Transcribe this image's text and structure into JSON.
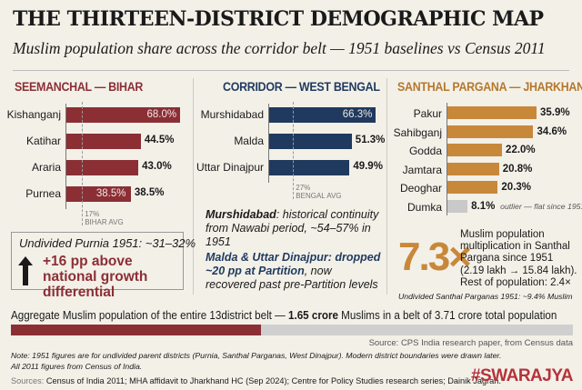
{
  "header": {
    "title": "THE THIRTEEN-DISTRICT DEMOGRAPHIC MAP",
    "subtitle": "Muslim population share across the corridor belt — 1951 baselines vs Census 2011"
  },
  "colors": {
    "bihar": "#8b2f35",
    "bengal": "#1f3a5e",
    "jharkhand": "#c8883a",
    "outlier": "#c9c9c9",
    "background": "#f3f0e8"
  },
  "chart_data": [
    {
      "type": "bar",
      "orientation": "horizontal",
      "title": "SEEMANCHAL — BIHAR",
      "categories": [
        "Kishanganj",
        "Katihar",
        "Araria",
        "Purnea"
      ],
      "values": [
        68.0,
        44.5,
        43.0,
        38.5
      ],
      "labels": [
        "68.0%",
        "44.5%",
        "43.0%",
        "38.5%"
      ],
      "inner_label_purnea": "38.5%",
      "reference": {
        "value": 17,
        "label_value": "17%",
        "label": "BIHAR AVG"
      }
    },
    {
      "type": "bar",
      "orientation": "horizontal",
      "title": "CORRIDOR — WEST BENGAL",
      "categories": [
        "Murshidabad",
        "Malda",
        "Uttar Dinajpur"
      ],
      "values": [
        66.3,
        51.3,
        49.9
      ],
      "labels": [
        "66.3%",
        "51.3%",
        "49.9%"
      ],
      "reference": {
        "value": 27,
        "label_value": "27%",
        "label": "BENGAL AVG"
      }
    },
    {
      "type": "bar",
      "orientation": "horizontal",
      "title": "SANTHAL PARGANA — JHARKHAND",
      "categories": [
        "Pakur",
        "Sahibganj",
        "Godda",
        "Jamtara",
        "Deoghar",
        "Dumka"
      ],
      "values": [
        35.9,
        34.6,
        22.0,
        20.8,
        20.3,
        8.1
      ],
      "labels": [
        "35.9%",
        "34.6%",
        "22.0%",
        "20.8%",
        "20.3%",
        "8.1%"
      ],
      "annotation": "outlier — flat since 1951"
    },
    {
      "type": "bar",
      "orientation": "horizontal",
      "values": [
        1.65,
        3.71
      ],
      "units": "crore"
    }
  ],
  "bihar": {
    "box_line1": "Undivided Purnia 1951: ~31–32%",
    "box_line2": "+16 pp above national growth differential"
  },
  "bengal": {
    "note1_bold": "Murshidabad",
    "note1_rest": ": historical continuity from Nawabi period, ~54–57% in 1951",
    "note2_bold": "Malda & Uttar Dinajpur: dropped ~20 pp at Partition",
    "note2_rest": ", now recovered past pre-Partition levels"
  },
  "jharkhand": {
    "big": "7.3×",
    "desc": "Muslim population multiplication in Santhal Pargana since 1951 (2.19 lakh → 15.84 lakh). Rest of population: 2.4×",
    "note": "Undivided Santhal Parganas 1951: ~9.4% Muslim"
  },
  "aggregate": {
    "pre": "Aggregate Muslim population of the entire 13district belt — ",
    "bold": "1.65 crore",
    "post": " Muslims in a belt of 3.71 crore total population"
  },
  "footer": {
    "source": "Source: CPS India research paper, from Census data",
    "note1": "Note: 1951 figures are for undivided parent districts (Purnia, Santhal Parganas, West Dinajpur). Modern district boundaries were drawn later.",
    "note2": "All 2011 figures from Census of India.",
    "sources_label": "Sources:",
    "sources": " Census of India 2011; MHA affidavit to Jharkhand HC (Sep 2024); Centre for Policy Studies research series; Dainik Jagran.",
    "brand": "#SWARAJYA"
  }
}
